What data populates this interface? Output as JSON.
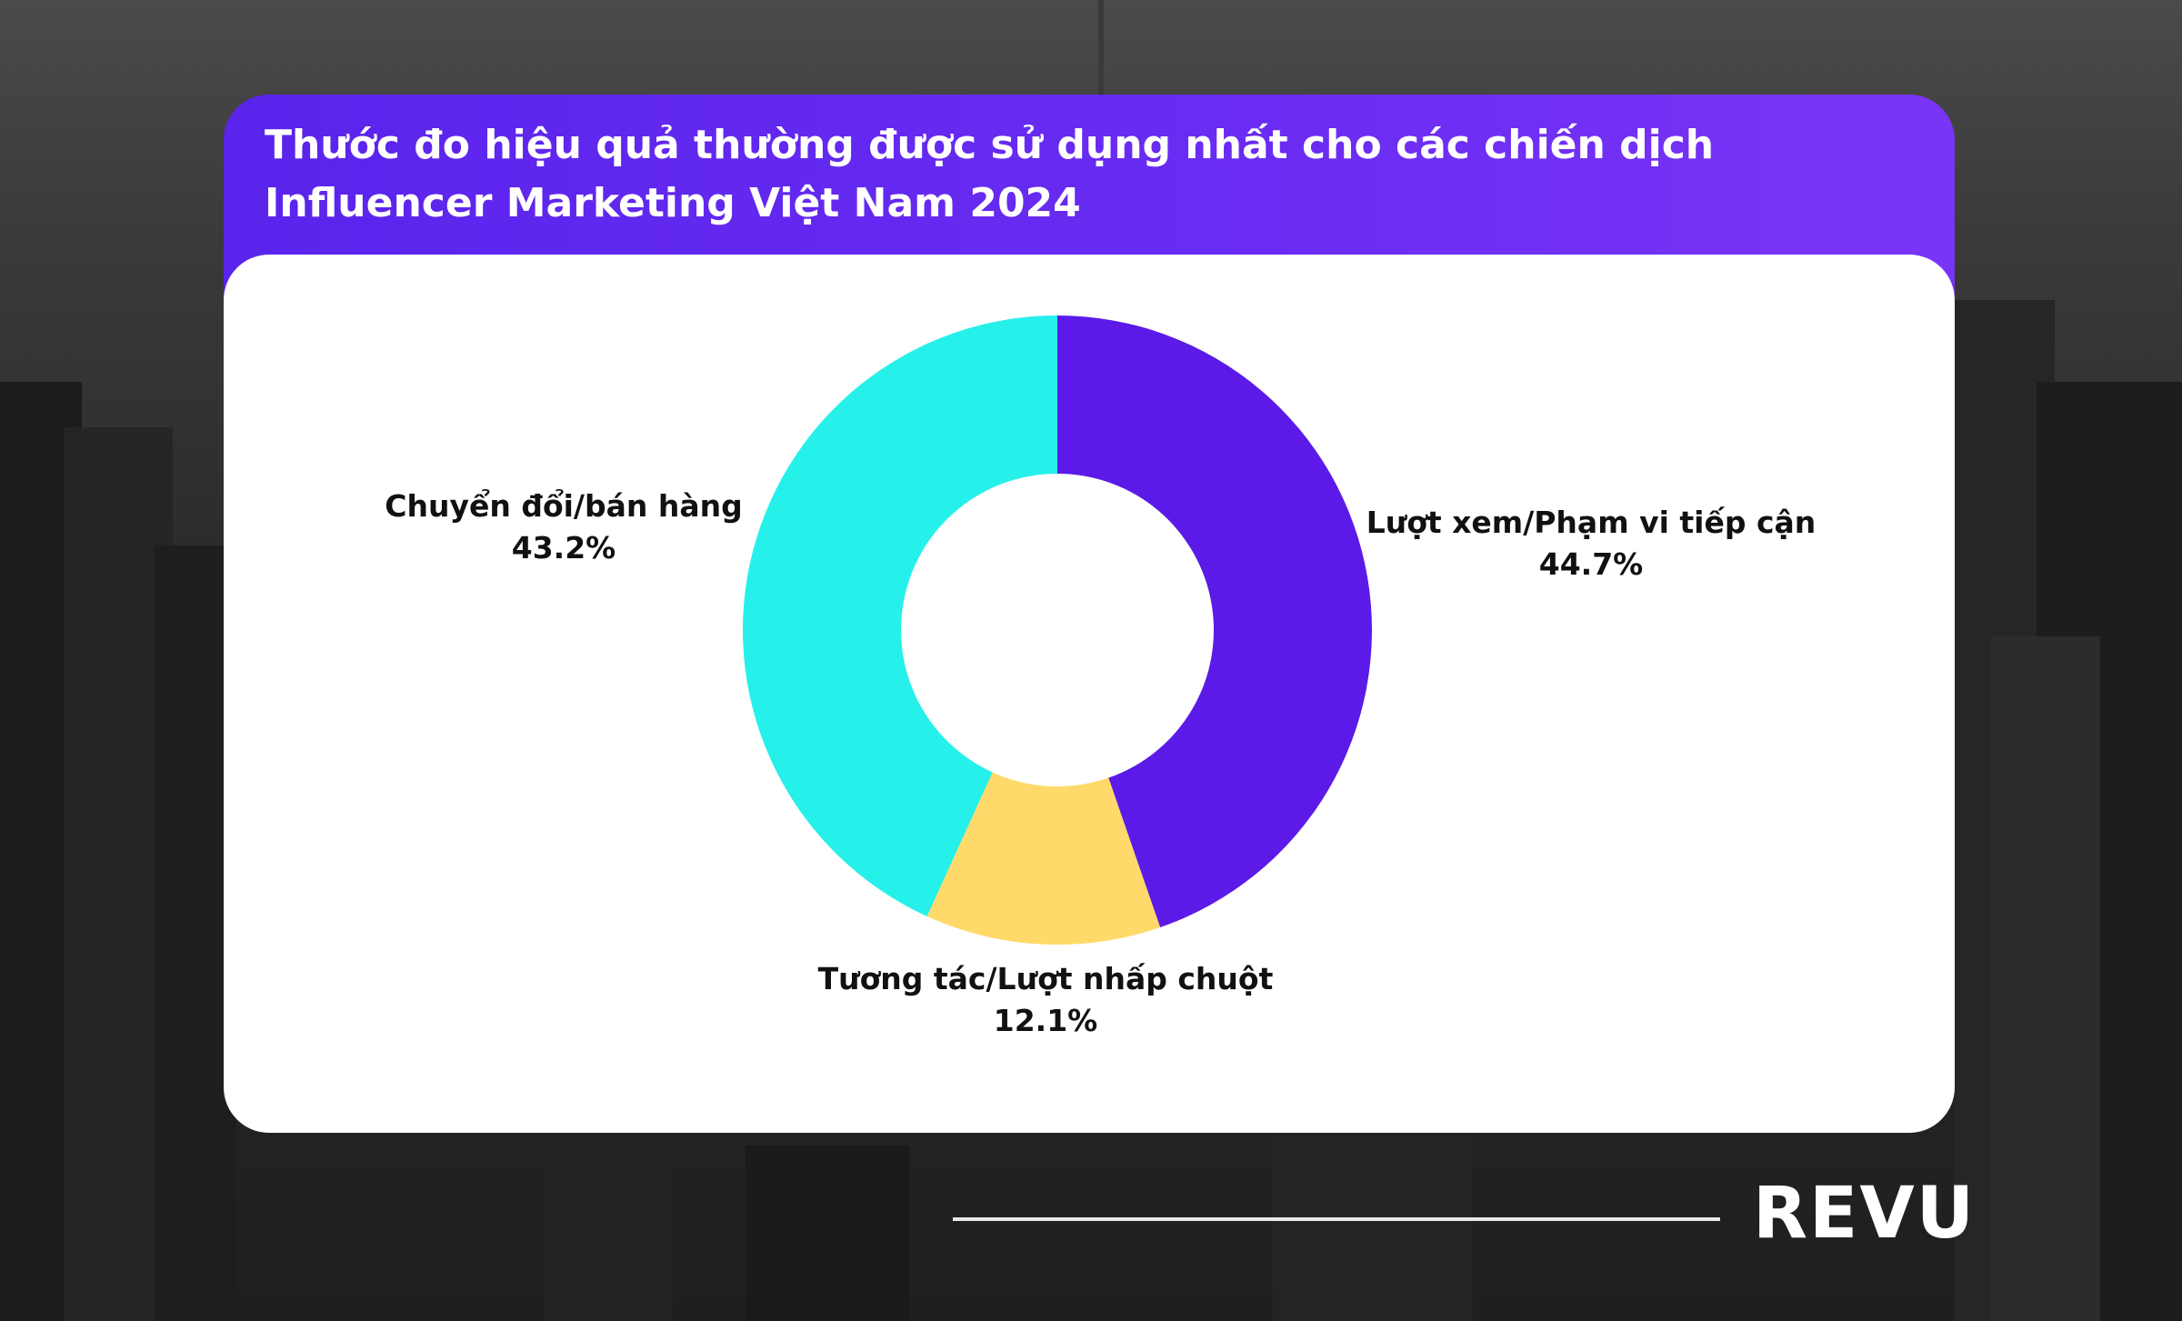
{
  "title_lines": [
    "Thước đo hiệu quả thường được sử dụng nhất cho các chiến dịch",
    "Influencer Marketing Việt Nam 2024"
  ],
  "brand": "REVU",
  "colors": {
    "header": "#5e27ee",
    "views": "#5b1ae8",
    "conversion": "#26f0ea",
    "engagement": "#ffd96a"
  },
  "chart_data": {
    "type": "pie",
    "donut": true,
    "title": "Thước đo hiệu quả thường được sử dụng nhất cho các chiến dịch Influencer Marketing Việt Nam 2024",
    "slices": [
      {
        "label": "Lượt xem/Phạm vi tiếp cận",
        "value": 44.7,
        "display": "44.7%",
        "color": "#5b1ae8"
      },
      {
        "label": "Tương tác/Lượt nhấp chuột",
        "value": 12.1,
        "display": "12.1%",
        "color": "#ffd96a"
      },
      {
        "label": "Chuyển đổi/bán hàng",
        "value": 43.2,
        "display": "43.2%",
        "color": "#26f0ea"
      }
    ],
    "legend": "none",
    "labels": "outside"
  }
}
